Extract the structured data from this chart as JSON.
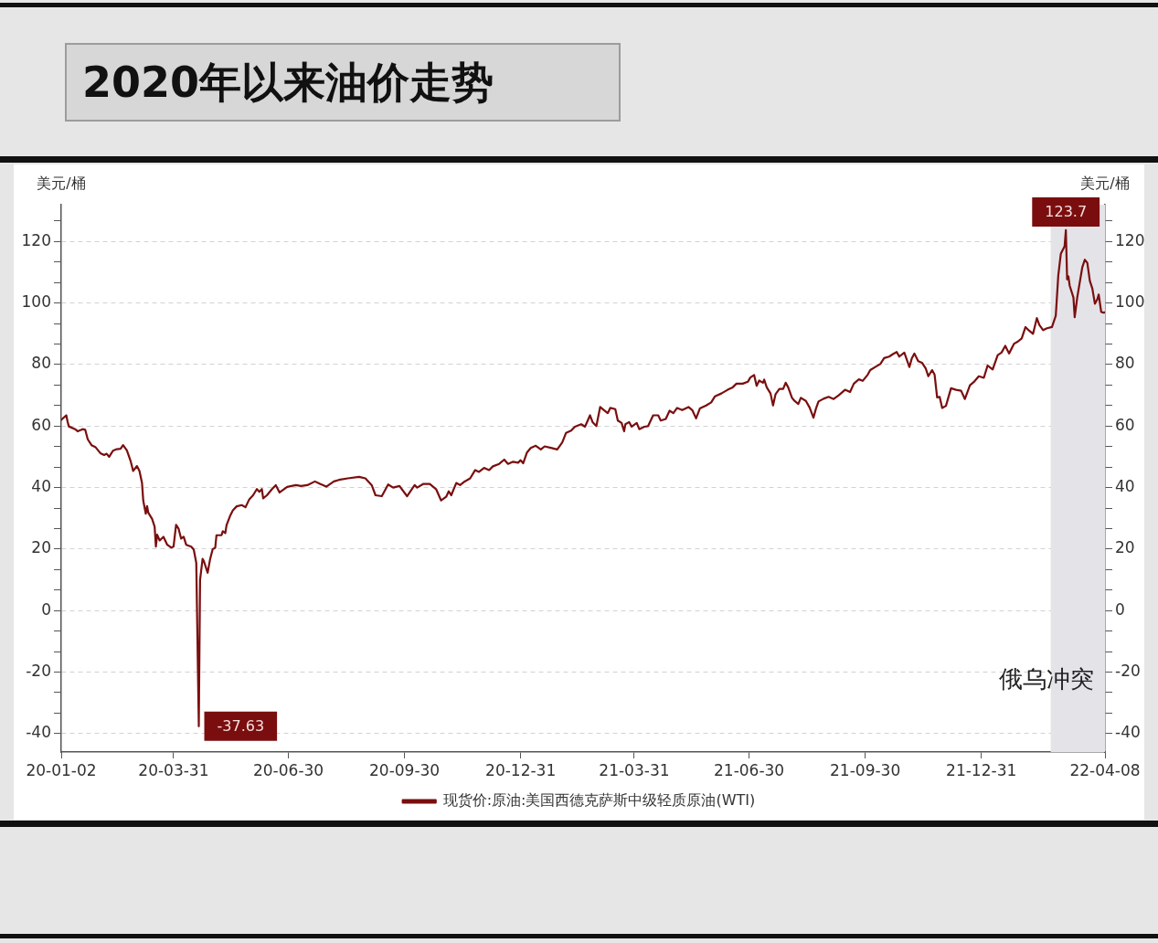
{
  "chart_data": {
    "type": "line",
    "title": "2020年以来油价走势",
    "ylabel": "美元/桶",
    "y2label": "美元/桶",
    "x": [
      "2020-01-02",
      "2020-01-06",
      "2020-01-07",
      "2020-01-08",
      "2020-01-13",
      "2020-01-15",
      "2020-01-19",
      "2020-01-21",
      "2020-01-23",
      "2020-01-26",
      "2020-01-29",
      "2020-02-02",
      "2020-02-05",
      "2020-02-07",
      "2020-02-09",
      "2020-02-12",
      "2020-02-15",
      "2020-02-18",
      "2020-02-20",
      "2020-02-23",
      "2020-02-26",
      "2020-02-28",
      "2020-03-02",
      "2020-03-04",
      "2020-03-06",
      "2020-03-07",
      "2020-03-09",
      "2020-03-10",
      "2020-03-11",
      "2020-03-14",
      "2020-03-16",
      "2020-03-17",
      "2020-03-18",
      "2020-03-20",
      "2020-03-23",
      "2020-03-26",
      "2020-03-29",
      "2020-03-31",
      "2020-04-02",
      "2020-04-04",
      "2020-04-06",
      "2020-04-08",
      "2020-04-10",
      "2020-04-14",
      "2020-04-16",
      "2020-04-18",
      "2020-04-20",
      "2020-04-21",
      "2020-04-23",
      "2020-04-24",
      "2020-04-27",
      "2020-04-29",
      "2020-05-01",
      "2020-05-03",
      "2020-05-04",
      "2020-05-08",
      "2020-05-09",
      "2020-05-11",
      "2020-05-12",
      "2020-05-15",
      "2020-05-17",
      "2020-05-20",
      "2020-05-24",
      "2020-05-27",
      "2020-05-30",
      "2020-06-02",
      "2020-06-05",
      "2020-06-07",
      "2020-06-09",
      "2020-06-10",
      "2020-06-13",
      "2020-06-17",
      "2020-06-20",
      "2020-06-23",
      "2020-06-29",
      "2020-07-06",
      "2020-07-10",
      "2020-07-15",
      "2020-07-21",
      "2020-07-25",
      "2020-07-30",
      "2020-08-05",
      "2020-08-09",
      "2020-08-16",
      "2020-08-25",
      "2020-08-30",
      "2020-09-04",
      "2020-09-07",
      "2020-09-12",
      "2020-09-17",
      "2020-09-21",
      "2020-09-26",
      "2020-10-02",
      "2020-10-08",
      "2020-10-10",
      "2020-10-15",
      "2020-10-20",
      "2020-10-25",
      "2020-10-29",
      "2020-11-02",
      "2020-11-04",
      "2020-11-06",
      "2020-11-10",
      "2020-11-13",
      "2020-11-16",
      "2020-11-21",
      "2020-11-25",
      "2020-11-28",
      "2020-12-02",
      "2020-12-06",
      "2020-12-09",
      "2020-12-14",
      "2020-12-18",
      "2020-12-21",
      "2020-12-25",
      "2020-12-29",
      "2020-12-31",
      "2021-01-02",
      "2021-01-05",
      "2021-01-08",
      "2021-01-12",
      "2021-01-16",
      "2021-01-19",
      "2021-01-24",
      "2021-01-29",
      "2021-02-02",
      "2021-02-05",
      "2021-02-09",
      "2021-02-12",
      "2021-02-17",
      "2021-02-20",
      "2021-02-24",
      "2021-02-26",
      "2021-03-01",
      "2021-03-04",
      "2021-03-07",
      "2021-03-10",
      "2021-03-12",
      "2021-03-16",
      "2021-03-18",
      "2021-03-21",
      "2021-03-23",
      "2021-03-24",
      "2021-03-27",
      "2021-03-29",
      "2021-04-02",
      "2021-04-04",
      "2021-04-08",
      "2021-04-11",
      "2021-04-15",
      "2021-04-19",
      "2021-04-21",
      "2021-04-25",
      "2021-04-28",
      "2021-05-01",
      "2021-05-04",
      "2021-05-08",
      "2021-05-13",
      "2021-05-16",
      "2021-05-19",
      "2021-05-22",
      "2021-05-27",
      "2021-05-31",
      "2021-06-03",
      "2021-06-08",
      "2021-06-13",
      "2021-06-17",
      "2021-06-20",
      "2021-06-25",
      "2021-06-29",
      "2021-07-01",
      "2021-07-04",
      "2021-07-06",
      "2021-07-08",
      "2021-07-11",
      "2021-07-12",
      "2021-07-14",
      "2021-07-17",
      "2021-07-19",
      "2021-07-21",
      "2021-07-24",
      "2021-07-27",
      "2021-07-29",
      "2021-07-31",
      "2021-08-03",
      "2021-08-05",
      "2021-08-08",
      "2021-08-10",
      "2021-08-14",
      "2021-08-17",
      "2021-08-20",
      "2021-08-22",
      "2021-08-24",
      "2021-08-28",
      "2021-09-01",
      "2021-09-05",
      "2021-09-09",
      "2021-09-14",
      "2021-09-18",
      "2021-09-21",
      "2021-09-25",
      "2021-09-28",
      "2021-10-02",
      "2021-10-04",
      "2021-10-08",
      "2021-10-12",
      "2021-10-15",
      "2021-10-19",
      "2021-10-22",
      "2021-10-25",
      "2021-10-27",
      "2021-10-31",
      "2021-11-04",
      "2021-11-06",
      "2021-11-08",
      "2021-11-11",
      "2021-11-14",
      "2021-11-17",
      "2021-11-19",
      "2021-11-22",
      "2021-11-24",
      "2021-11-26",
      "2021-11-28",
      "2021-11-30",
      "2021-12-03",
      "2021-12-07",
      "2021-12-11",
      "2021-12-15",
      "2021-12-18",
      "2021-12-22",
      "2021-12-25",
      "2021-12-29",
      "2022-01-02",
      "2022-01-05",
      "2022-01-09",
      "2022-01-13",
      "2022-01-16",
      "2022-01-19",
      "2022-01-22",
      "2022-01-26",
      "2022-01-29",
      "2022-02-01",
      "2022-02-04",
      "2022-02-07",
      "2022-02-10",
      "2022-02-13",
      "2022-02-15",
      "2022-02-18",
      "2022-02-21",
      "2022-02-25",
      "2022-02-28",
      "2022-03-02",
      "2022-03-04",
      "2022-03-07",
      "2022-03-08",
      "2022-03-09",
      "2022-03-10",
      "2022-03-11",
      "2022-03-14",
      "2022-03-15",
      "2022-03-17",
      "2022-03-19",
      "2022-03-21",
      "2022-03-23",
      "2022-03-25",
      "2022-03-27",
      "2022-03-29",
      "2022-03-31",
      "2022-04-02",
      "2022-04-03",
      "2022-04-05",
      "2022-04-07",
      "2022-04-08"
    ],
    "series": [
      {
        "name": "现货价:原油:美国西德克萨斯中级轻质原油(WTI)",
        "color": "#7a0e0e",
        "values": [
          62,
          63.5,
          61.5,
          59.9,
          59,
          58.3,
          59,
          58.8,
          55.7,
          53.8,
          53.2,
          51.2,
          50.6,
          51,
          50,
          52,
          52.5,
          52.6,
          53.8,
          52.1,
          48.6,
          45.4,
          47,
          45.4,
          41.5,
          35.7,
          31.5,
          34,
          31.8,
          29.8,
          27.3,
          20.8,
          24.7,
          22.8,
          24,
          21.4,
          20.5,
          20.8,
          27.9,
          26.6,
          23.4,
          24,
          21.4,
          20.8,
          19.8,
          15.5,
          -37.63,
          10,
          16.8,
          16.1,
          12.3,
          16.8,
          20,
          20.4,
          24.5,
          24.5,
          25.8,
          25.2,
          27.8,
          31,
          32.6,
          33.9,
          34.3,
          33.6,
          36.2,
          37.5,
          39.5,
          38.6,
          39.5,
          36.5,
          37.5,
          39.5,
          40.8,
          38.4,
          40.2,
          40.8,
          40.5,
          40.8,
          42,
          41.2,
          40.3,
          42,
          42.5,
          43,
          43.5,
          43,
          40.8,
          37.5,
          37.2,
          41,
          40,
          40.5,
          37.2,
          40.8,
          40,
          41.2,
          41.2,
          39.5,
          35.8,
          37,
          38.8,
          37.5,
          41.5,
          40.8,
          41.8,
          43,
          45.7,
          45.1,
          46.4,
          45.7,
          46.9,
          47.7,
          49.1,
          47.7,
          48.4,
          48.1,
          48.9,
          47.9,
          51.4,
          52.9,
          53.6,
          52.4,
          53.4,
          52.9,
          52.4,
          54.7,
          57.8,
          58.5,
          59.8,
          60.6,
          59.8,
          63.5,
          61.3,
          60,
          66.2,
          65.2,
          64.2,
          65.9,
          65.5,
          61.8,
          61,
          58.3,
          60.6,
          61.3,
          59.8,
          61,
          59,
          59.8,
          60,
          63.5,
          63.5,
          61.8,
          62.3,
          65,
          64.2,
          65.9,
          65.2,
          66.2,
          65.2,
          62.5,
          65.7,
          66.7,
          67.7,
          69.7,
          70.6,
          71.8,
          72.6,
          73.8,
          73.8,
          74.4,
          75.8,
          76.6,
          73.1,
          74.8,
          74.1,
          75.1,
          72.6,
          70.6,
          66.7,
          70.4,
          72.1,
          72.1,
          74.1,
          72.6,
          69.2,
          68.2,
          67.2,
          69.2,
          68.2,
          66,
          62.7,
          65.7,
          68,
          68.9,
          69.5,
          68.8,
          70,
          71.8,
          71.1,
          73.8,
          75.2,
          74.7,
          76.7,
          78.2,
          79.2,
          80.2,
          82.1,
          82.6,
          83.4,
          84.1,
          82.6,
          83.9,
          79.2,
          82.1,
          83.6,
          81.1,
          80.6,
          78.7,
          76.2,
          78.2,
          76.7,
          69.3,
          69.5,
          65.9,
          66.6,
          72.3,
          71.8,
          71.5,
          68.8,
          73.3,
          74.3,
          76.2,
          75.7,
          79.7,
          78.4,
          83.1,
          83.9,
          86.1,
          83.6,
          86.8,
          87.5,
          88.5,
          92.2,
          91,
          90,
          95.1,
          92.9,
          91.2,
          91.8,
          92.2,
          95.9,
          109,
          116,
          118.5,
          123.7,
          107.7,
          108.7,
          105.7,
          101.8,
          95.4,
          101.8,
          106.7,
          111.6,
          114.1,
          113.1,
          107.2,
          104.7,
          99.8,
          101.3,
          102.8,
          97.1,
          96.9,
          97
        ]
      }
    ],
    "xlim": [
      "2020-01-02",
      "2022-04-08"
    ],
    "xticks": [
      {
        "value": "2020-01-02",
        "label": "20-01-02"
      },
      {
        "value": "2020-03-31",
        "label": "20-03-31"
      },
      {
        "value": "2020-06-30",
        "label": "20-06-30"
      },
      {
        "value": "2020-09-30",
        "label": "20-09-30"
      },
      {
        "value": "2020-12-31",
        "label": "20-12-31"
      },
      {
        "value": "2021-03-31",
        "label": "21-03-31"
      },
      {
        "value": "2021-06-30",
        "label": "21-06-30"
      },
      {
        "value": "2021-09-30",
        "label": "21-09-30"
      },
      {
        "value": "2021-12-31",
        "label": "21-12-31"
      },
      {
        "value": "2022-04-08",
        "label": "22-04-08"
      }
    ],
    "ylim": [
      -46,
      132
    ],
    "yticks": [
      -40,
      {
        "value": -33.33,
        "label": null
      },
      {
        "value": -26.67,
        "label": null
      },
      -20,
      {
        "value": -13.33,
        "label": null
      },
      {
        "value": -6.67,
        "label": null
      },
      0,
      {
        "value": 6.67,
        "label": null
      },
      {
        "value": 13.33,
        "label": null
      },
      20,
      {
        "value": 26.67,
        "label": null
      },
      {
        "value": 33.33,
        "label": null
      },
      40,
      {
        "value": 46.67,
        "label": null
      },
      {
        "value": 53.33,
        "label": null
      },
      60,
      {
        "value": 66.67,
        "label": null
      },
      {
        "value": 73.33,
        "label": null
      },
      80,
      {
        "value": 86.67,
        "label": null
      },
      {
        "value": 93.33,
        "label": null
      },
      100,
      {
        "value": 106.67,
        "label": null
      },
      {
        "value": 113.33,
        "label": null
      },
      120,
      {
        "value": 126.67,
        "label": null
      }
    ],
    "y2lim": [
      -46,
      132
    ],
    "y2ticks": [
      -40,
      {
        "value": -33.33,
        "label": null
      },
      {
        "value": -26.67,
        "label": null
      },
      -20,
      {
        "value": -13.33,
        "label": null
      },
      {
        "value": -6.67,
        "label": null
      },
      0,
      {
        "value": 6.67,
        "label": null
      },
      {
        "value": 13.33,
        "label": null
      },
      20,
      {
        "value": 26.67,
        "label": null
      },
      {
        "value": 33.33,
        "label": null
      },
      40,
      {
        "value": 46.67,
        "label": null
      },
      {
        "value": 53.33,
        "label": null
      },
      60,
      {
        "value": 66.67,
        "label": null
      },
      {
        "value": 73.33,
        "label": null
      },
      80,
      {
        "value": 86.67,
        "label": null
      },
      {
        "value": 93.33,
        "label": null
      },
      100,
      {
        "value": 106.67,
        "label": null
      },
      {
        "value": 113.33,
        "label": null
      },
      120,
      {
        "value": 126.67,
        "label": null
      }
    ],
    "bands": [
      {
        "axis": "x",
        "from": "2022-02-24",
        "to": "2022-04-08",
        "label": "俄乌冲突",
        "color": "#e4e3e8"
      }
    ],
    "annotations": [
      {
        "text": "-37.63",
        "x": "2020-04-20",
        "y": -37.63
      },
      {
        "text": "123.7",
        "x": "2022-03-08",
        "y": 123.7
      }
    ],
    "grid": "y",
    "legend": "bottom",
    "line_style": "solid"
  }
}
